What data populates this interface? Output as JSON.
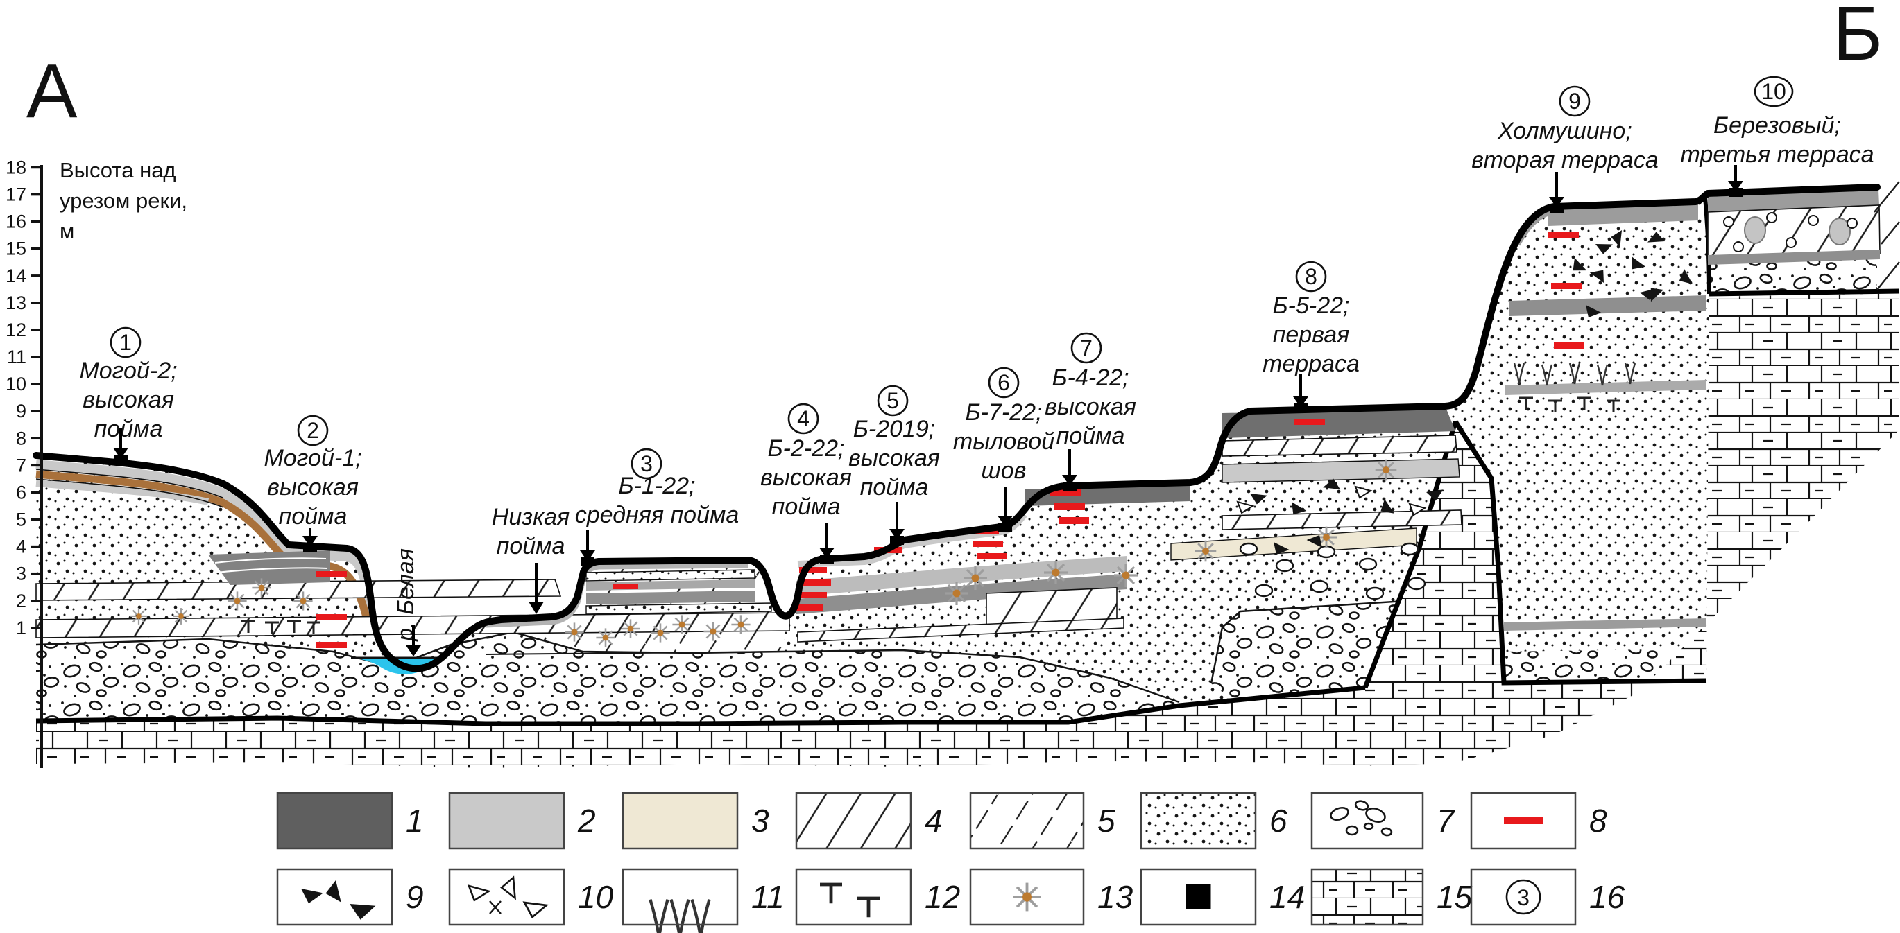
{
  "corner_labels": {
    "left": "А",
    "right": "Б"
  },
  "axis": {
    "caption_lines": [
      "Высота над",
      "урезом реки,",
      "м"
    ],
    "ticks": [
      "18",
      "17",
      "16",
      "15",
      "14",
      "13",
      "12",
      "11",
      "10",
      "9",
      "8",
      "7",
      "6",
      "5",
      "4",
      "3",
      "2",
      "1"
    ]
  },
  "annotations": {
    "river": {
      "label": "р. Белая"
    },
    "low_floodplain": {
      "lines": [
        "Низкая",
        "пойма"
      ]
    }
  },
  "sites": [
    {
      "num": "1",
      "lines": [
        "Могой-2;",
        "высокая",
        "пойма"
      ]
    },
    {
      "num": "2",
      "lines": [
        "Могой-1;",
        "высокая",
        "пойма"
      ]
    },
    {
      "num": "3",
      "lines": [
        "Б-1-22;",
        "средняя пойма"
      ]
    },
    {
      "num": "4",
      "lines": [
        "Б-2-22;",
        "высокая",
        "пойма"
      ]
    },
    {
      "num": "5",
      "lines": [
        "Б-2019;",
        "высокая",
        "пойма"
      ]
    },
    {
      "num": "6",
      "lines": [
        "Б-7-22;",
        "тыловой",
        "шов"
      ]
    },
    {
      "num": "7",
      "lines": [
        "Б-4-22;",
        "высокая",
        "пойма"
      ]
    },
    {
      "num": "8",
      "lines": [
        "Б-5-22;",
        "первая",
        "терраса"
      ]
    },
    {
      "num": "9",
      "lines": [
        "Холмушино;",
        "вторая терраса"
      ]
    },
    {
      "num": "10",
      "lines": [
        "Березовый;",
        "третья терраса"
      ]
    }
  ],
  "legend": {
    "items": [
      {
        "num": "1",
        "symbol": "dark-gray-fill"
      },
      {
        "num": "2",
        "symbol": "light-gray-fill"
      },
      {
        "num": "3",
        "symbol": "beige-fill"
      },
      {
        "num": "4",
        "symbol": "diagonal-hatch"
      },
      {
        "num": "5",
        "symbol": "dashed-diagonal-hatch"
      },
      {
        "num": "6",
        "symbol": "dots-sand"
      },
      {
        "num": "7",
        "symbol": "pebbles"
      },
      {
        "num": "8",
        "symbol": "red-bar"
      },
      {
        "num": "9",
        "symbol": "black-angular-clasts"
      },
      {
        "num": "10",
        "symbol": "open-angular-clasts"
      },
      {
        "num": "11",
        "symbol": "root-casts"
      },
      {
        "num": "12",
        "symbol": "t-marks"
      },
      {
        "num": "13",
        "symbol": "star"
      },
      {
        "num": "14",
        "symbol": "black-square"
      },
      {
        "num": "15",
        "symbol": "limestone-bricks"
      },
      {
        "num": "16",
        "symbol": "circled-number",
        "value": "3"
      }
    ]
  },
  "colors": {
    "red": "#e8191c",
    "water": "#2bc4ec",
    "brown": "#a9713b",
    "beige": "#efe8d4",
    "dark_gray": "#5f5f5f",
    "cap_gray": "#6f6f6f",
    "mid_gray": "#8f8f8f",
    "light_gray": "#c9c9c9",
    "star_gray": "#9e9e9e",
    "star_core": "#bd7a2e"
  }
}
